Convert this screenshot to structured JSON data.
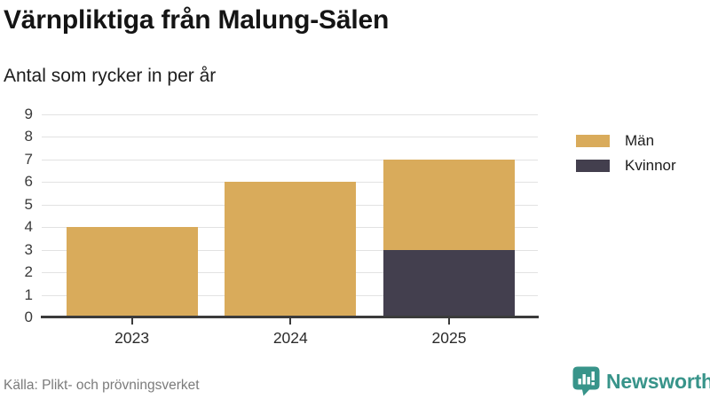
{
  "header": {
    "title": "Värnpliktiga från Malung-Sälen",
    "subtitle": "Antal som rycker in per år"
  },
  "footer": {
    "source": "Källa: Plikt- och prövningsverket",
    "brand": "Newsworthy"
  },
  "colors": {
    "men": "#d9ab5b",
    "women": "#433f4e",
    "brand_teal": "#38948a",
    "axis": "#3b3b3b",
    "grid": "#e2e2e2"
  },
  "chart_data": {
    "type": "bar",
    "stacked": true,
    "title": "Värnpliktiga från Malung-Sälen",
    "subtitle": "Antal som rycker in per år",
    "categories": [
      "2023",
      "2024",
      "2025"
    ],
    "series": [
      {
        "name": "Kvinnor",
        "color": "#433f4e",
        "values": [
          0,
          0,
          3
        ]
      },
      {
        "name": "Män",
        "color": "#d9ab5b",
        "values": [
          4,
          6,
          4
        ]
      }
    ],
    "totals": [
      4,
      6,
      7
    ],
    "xlabel": "",
    "ylabel": "",
    "ylim": [
      0,
      9
    ],
    "ytick_step": 1,
    "grid": true,
    "legend_position": "right",
    "legend": [
      {
        "label": "Män",
        "color": "#d9ab5b"
      },
      {
        "label": "Kvinnor",
        "color": "#433f4e"
      }
    ]
  }
}
